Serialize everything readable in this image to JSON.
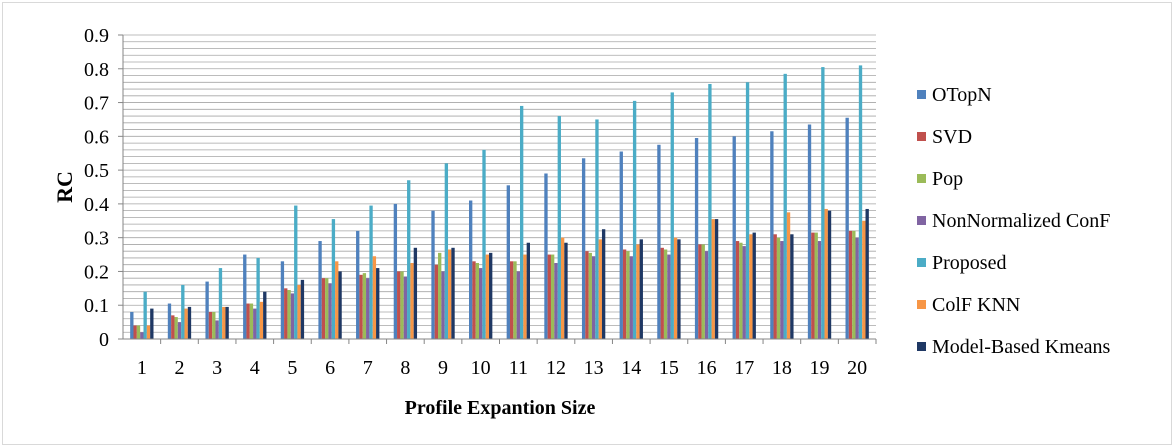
{
  "chart_data": {
    "type": "bar",
    "title": "",
    "xlabel": "Profile Expantion Size",
    "ylabel": "RC",
    "ylim": [
      0,
      0.9
    ],
    "yticks": [
      "0",
      "0.1",
      "0.2",
      "0.3",
      "0.4",
      "0.5",
      "0.6",
      "0.7",
      "0.8",
      "0.9"
    ],
    "grid": true,
    "legend_position": "right",
    "categories": [
      "1",
      "2",
      "3",
      "4",
      "5",
      "6",
      "7",
      "8",
      "9",
      "10",
      "11",
      "12",
      "13",
      "14",
      "15",
      "16",
      "17",
      "18",
      "19",
      "20"
    ],
    "series": [
      {
        "name": "OTopN",
        "color": "#4f81bd",
        "values": [
          0.08,
          0.105,
          0.17,
          0.25,
          0.23,
          0.29,
          0.32,
          0.4,
          0.38,
          0.41,
          0.455,
          0.49,
          0.535,
          0.555,
          0.575,
          0.595,
          0.6,
          0.615,
          0.635,
          0.655
        ]
      },
      {
        "name": "SVD",
        "color": "#c0504d",
        "values": [
          0.04,
          0.07,
          0.08,
          0.105,
          0.15,
          0.18,
          0.19,
          0.2,
          0.22,
          0.23,
          0.23,
          0.25,
          0.26,
          0.265,
          0.27,
          0.28,
          0.29,
          0.31,
          0.315,
          0.32
        ]
      },
      {
        "name": "Pop",
        "color": "#9bbb59",
        "values": [
          0.04,
          0.065,
          0.08,
          0.105,
          0.145,
          0.18,
          0.195,
          0.2,
          0.255,
          0.225,
          0.23,
          0.25,
          0.255,
          0.26,
          0.265,
          0.28,
          0.285,
          0.3,
          0.315,
          0.32
        ]
      },
      {
        "name": "NonNormalized ConF",
        "color": "#8064a2",
        "values": [
          0.02,
          0.05,
          0.055,
          0.09,
          0.135,
          0.165,
          0.18,
          0.185,
          0.2,
          0.21,
          0.2,
          0.225,
          0.245,
          0.245,
          0.25,
          0.26,
          0.275,
          0.29,
          0.29,
          0.3
        ]
      },
      {
        "name": "Proposed",
        "color": "#4bacc6",
        "values": [
          0.14,
          0.16,
          0.21,
          0.24,
          0.395,
          0.355,
          0.395,
          0.47,
          0.52,
          0.56,
          0.69,
          0.66,
          0.65,
          0.705,
          0.73,
          0.755,
          0.76,
          0.785,
          0.805,
          0.81
        ]
      },
      {
        "name": "ColF KNN",
        "color": "#f79646",
        "values": [
          0.04,
          0.09,
          0.095,
          0.11,
          0.16,
          0.23,
          0.245,
          0.225,
          0.265,
          0.25,
          0.25,
          0.3,
          0.295,
          0.28,
          0.3,
          0.355,
          0.31,
          0.375,
          0.385,
          0.35
        ]
      },
      {
        "name": "Model-Based Kmeans",
        "color": "#1f3864",
        "values": [
          0.09,
          0.095,
          0.095,
          0.14,
          0.175,
          0.2,
          0.21,
          0.27,
          0.27,
          0.255,
          0.285,
          0.285,
          0.325,
          0.295,
          0.295,
          0.355,
          0.315,
          0.31,
          0.38,
          0.385
        ]
      }
    ]
  }
}
